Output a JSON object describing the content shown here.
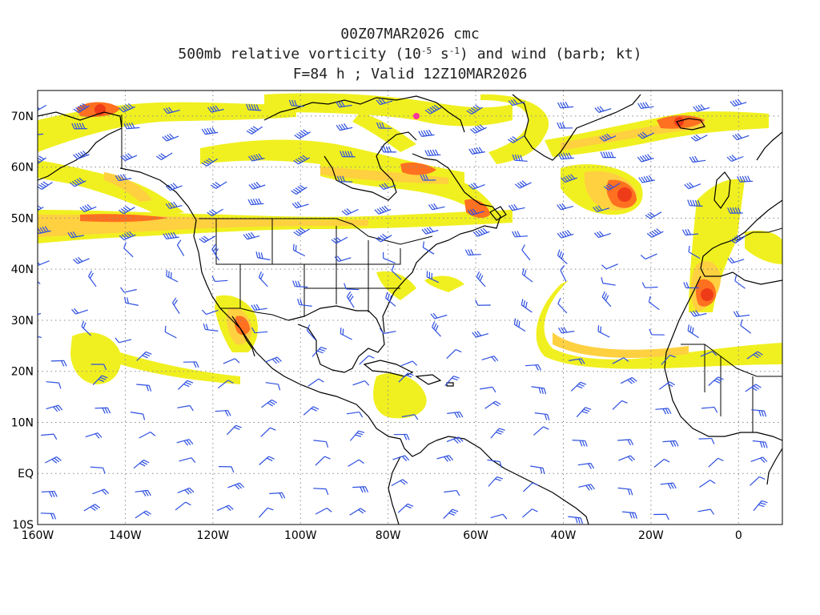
{
  "header": {
    "line1": "00Z07MAR2026 cmc",
    "line2_pre": "500mb relative vorticity (10",
    "line2_exp1": "-5",
    "line2_mid": " s",
    "line2_exp2": "-1",
    "line2_post": ") and wind (barb; kt)",
    "line3": "F=84 h ; Valid 12Z10MAR2026"
  },
  "axes": {
    "lon_labels": [
      "160W",
      "140W",
      "120W",
      "100W",
      "80W",
      "60W",
      "40W",
      "20W",
      "0"
    ],
    "lat_labels": [
      "70N",
      "60N",
      "50N",
      "40N",
      "30N",
      "20N",
      "10N",
      "EQ",
      "10S"
    ]
  },
  "map": {
    "projection": "cylindrical equidistant",
    "lon_range": [
      -160,
      10
    ],
    "lat_range": [
      -10,
      75
    ],
    "grid": "dotted, every 20° longitude and 10° latitude",
    "shading_colors": [
      "#f0f020",
      "#ffd040",
      "#ffa030",
      "#ff7020",
      "#ee3b18",
      "#ff30a0"
    ],
    "barb_color": "#2d4fe0",
    "coastline_color": "#000000"
  }
}
